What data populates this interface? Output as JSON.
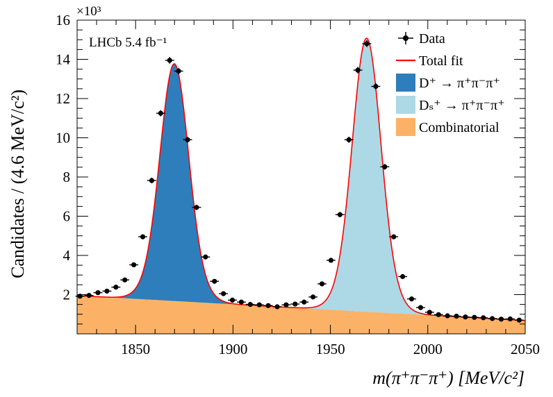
{
  "chart_data": {
    "type": "area",
    "title": "",
    "xlabel": "m(π⁺π⁻π⁺) [MeV/c²]",
    "ylabel": "Candidates / (4.6 MeV/c²)",
    "y_multiplier": "×10³",
    "xlim": [
      1820,
      2050
    ],
    "ylim": [
      0,
      16
    ],
    "x_ticks": [
      1850,
      1900,
      1950,
      2000,
      2050
    ],
    "y_ticks": [
      2,
      4,
      6,
      8,
      10,
      12,
      14,
      16
    ],
    "x_tick_labels": [
      "1850",
      "1900",
      "1950",
      "2000",
      "2050"
    ],
    "y_tick_labels": [
      "2",
      "4",
      "6",
      "8",
      "10",
      "12",
      "14",
      "16"
    ],
    "annotation": "LHCb 5.4 fb⁻¹",
    "legend_position": "top-right",
    "legend": [
      {
        "label": "Data",
        "kind": "marker",
        "color": "#000000"
      },
      {
        "label": "Total fit",
        "kind": "line",
        "color": "#ff0000"
      },
      {
        "label": "D⁺ → π⁺π⁻π⁺",
        "kind": "fill",
        "color": "#2e7ebb"
      },
      {
        "label": "Dₛ⁺ → π⁺π⁻π⁺",
        "kind": "fill",
        "color": "#add8e6"
      },
      {
        "label": "Combinatorial",
        "kind": "fill",
        "color": "#fbb266"
      }
    ],
    "components": {
      "combinatorial": {
        "type": "linear",
        "y_at_xmin": 1.95,
        "y_at_xmax": 0.68
      },
      "d_plus": {
        "mean": 1869.9,
        "amplitude": 12.1,
        "core_sigma": 7.0,
        "tail_sigma": 10.0,
        "tail_fraction": 0.22
      },
      "ds_plus": {
        "mean": 1968.6,
        "amplitude": 13.95,
        "core_sigma": 7.0,
        "tail_sigma": 10.0,
        "tail_fraction": 0.22
      }
    },
    "series": [
      {
        "name": "Data",
        "x_error": 2.3,
        "x": [
          1821.5,
          1826.1,
          1830.7,
          1835.3,
          1839.9,
          1844.5,
          1849.1,
          1853.7,
          1858.3,
          1862.9,
          1867.5,
          1872.1,
          1876.7,
          1881.3,
          1885.9,
          1890.5,
          1895.1,
          1899.7,
          1904.3,
          1908.9,
          1913.5,
          1918.1,
          1922.7,
          1927.3,
          1931.9,
          1936.5,
          1941.1,
          1945.7,
          1950.3,
          1954.9,
          1959.5,
          1964.1,
          1968.7,
          1973.3,
          1977.9,
          1982.5,
          1987.1,
          1991.7,
          1996.3,
          2000.9,
          2005.5,
          2010.1,
          2014.7,
          2019.3,
          2023.9,
          2028.5,
          2033.1,
          2037.7,
          2042.3,
          2046.9
        ],
        "y": [
          1.92,
          1.96,
          2.1,
          2.18,
          2.38,
          2.75,
          3.52,
          4.95,
          7.82,
          11.25,
          13.95,
          13.4,
          9.9,
          6.45,
          3.92,
          2.68,
          2.05,
          1.72,
          1.62,
          1.5,
          1.48,
          1.44,
          1.38,
          1.48,
          1.52,
          1.62,
          1.88,
          2.55,
          3.75,
          6.08,
          9.9,
          13.45,
          14.8,
          12.62,
          8.52,
          4.95,
          2.92,
          1.78,
          1.34,
          1.1,
          0.98,
          0.92,
          0.9,
          0.86,
          0.84,
          0.82,
          0.78,
          0.75,
          0.76,
          0.7
        ]
      }
    ]
  }
}
